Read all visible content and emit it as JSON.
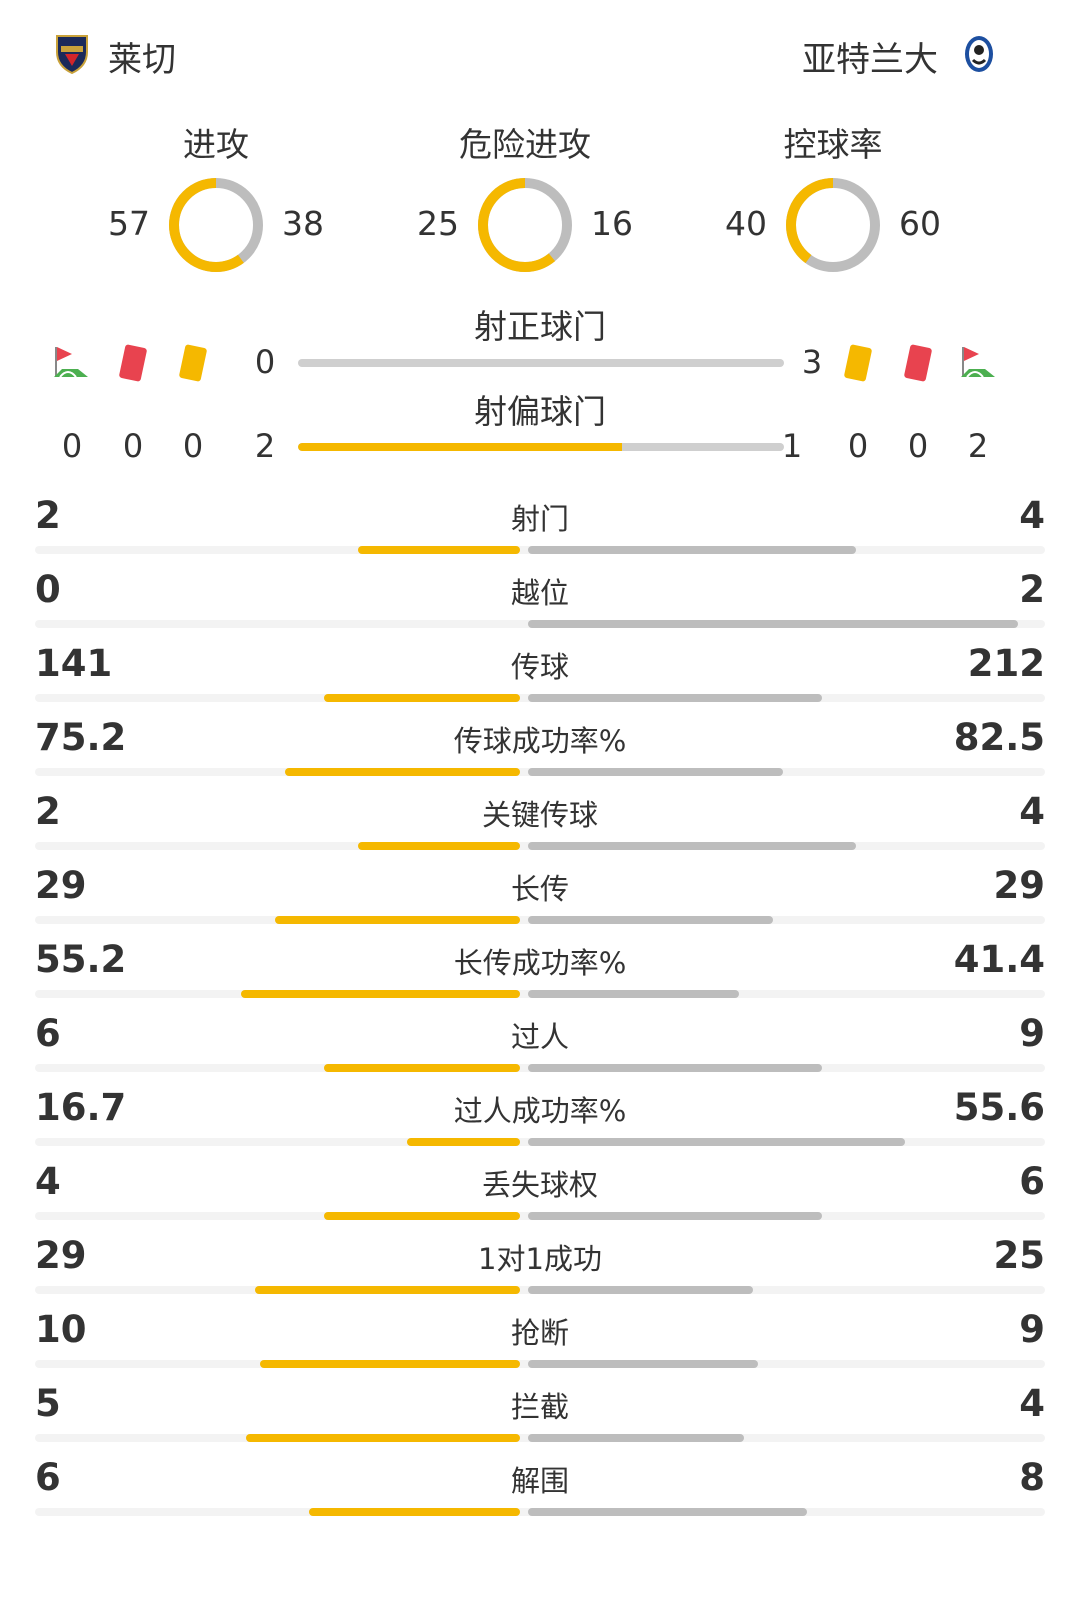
{
  "header": {
    "home": {
      "name": "莱切",
      "crest_icon": "lecce-crest-icon"
    },
    "away": {
      "name": "亚特兰大",
      "crest_icon": "atalanta-crest-icon"
    }
  },
  "donuts": [
    {
      "label": "进攻",
      "home": "57",
      "away": "38",
      "home_value": 57,
      "away_value": 38
    },
    {
      "label": "危险进攻",
      "home": "25",
      "away": "16",
      "home_value": 25,
      "away_value": 16
    },
    {
      "label": "控球率",
      "home": "40",
      "away": "60",
      "home_value": 40,
      "away_value": 60
    }
  ],
  "shots_on_target": {
    "label": "射正球门",
    "home": "0",
    "away": "3",
    "home_value": 0,
    "away_value": 3
  },
  "shots_off_target": {
    "label": "射偏球门",
    "home": "2",
    "away": "1",
    "home_value": 2,
    "away_value": 1
  },
  "home_counts": {
    "corners": "0",
    "red_cards": "0",
    "yellow_cards": "0"
  },
  "away_counts": {
    "yellow_cards": "0",
    "red_cards": "0",
    "corners": "2"
  },
  "stats": [
    {
      "label": "射门",
      "home": "2",
      "away": "4",
      "home_fill": 0.33,
      "away_fill": 0.67
    },
    {
      "label": "越位",
      "home": "0",
      "away": "2",
      "home_fill": 0.0,
      "away_fill": 1.0
    },
    {
      "label": "传球",
      "home": "141",
      "away": "212",
      "home_fill": 0.4,
      "away_fill": 0.6
    },
    {
      "label": "传球成功率%",
      "home": "75.2",
      "away": "82.5",
      "home_fill": 0.48,
      "away_fill": 0.52
    },
    {
      "label": "关键传球",
      "home": "2",
      "away": "4",
      "home_fill": 0.33,
      "away_fill": 0.67
    },
    {
      "label": "长传",
      "home": "29",
      "away": "29",
      "home_fill": 0.5,
      "away_fill": 0.5
    },
    {
      "label": "长传成功率%",
      "home": "55.2",
      "away": "41.4",
      "home_fill": 0.57,
      "away_fill": 0.43
    },
    {
      "label": "过人",
      "home": "6",
      "away": "9",
      "home_fill": 0.4,
      "away_fill": 0.6
    },
    {
      "label": "过人成功率%",
      "home": "16.7",
      "away": "55.6",
      "home_fill": 0.23,
      "away_fill": 0.77
    },
    {
      "label": "丢失球权",
      "home": "4",
      "away": "6",
      "home_fill": 0.4,
      "away_fill": 0.6
    },
    {
      "label": "1对1成功",
      "home": "29",
      "away": "25",
      "home_fill": 0.54,
      "away_fill": 0.46
    },
    {
      "label": "抢断",
      "home": "10",
      "away": "9",
      "home_fill": 0.53,
      "away_fill": 0.47
    },
    {
      "label": "拦截",
      "home": "5",
      "away": "4",
      "home_fill": 0.56,
      "away_fill": 0.44
    },
    {
      "label": "解围",
      "home": "6",
      "away": "8",
      "home_fill": 0.43,
      "away_fill": 0.57
    }
  ],
  "colors": {
    "home": "#F5B800",
    "away": "#BDBDBD",
    "red_card": "#E8434F",
    "yellow_card": "#F5B800"
  }
}
